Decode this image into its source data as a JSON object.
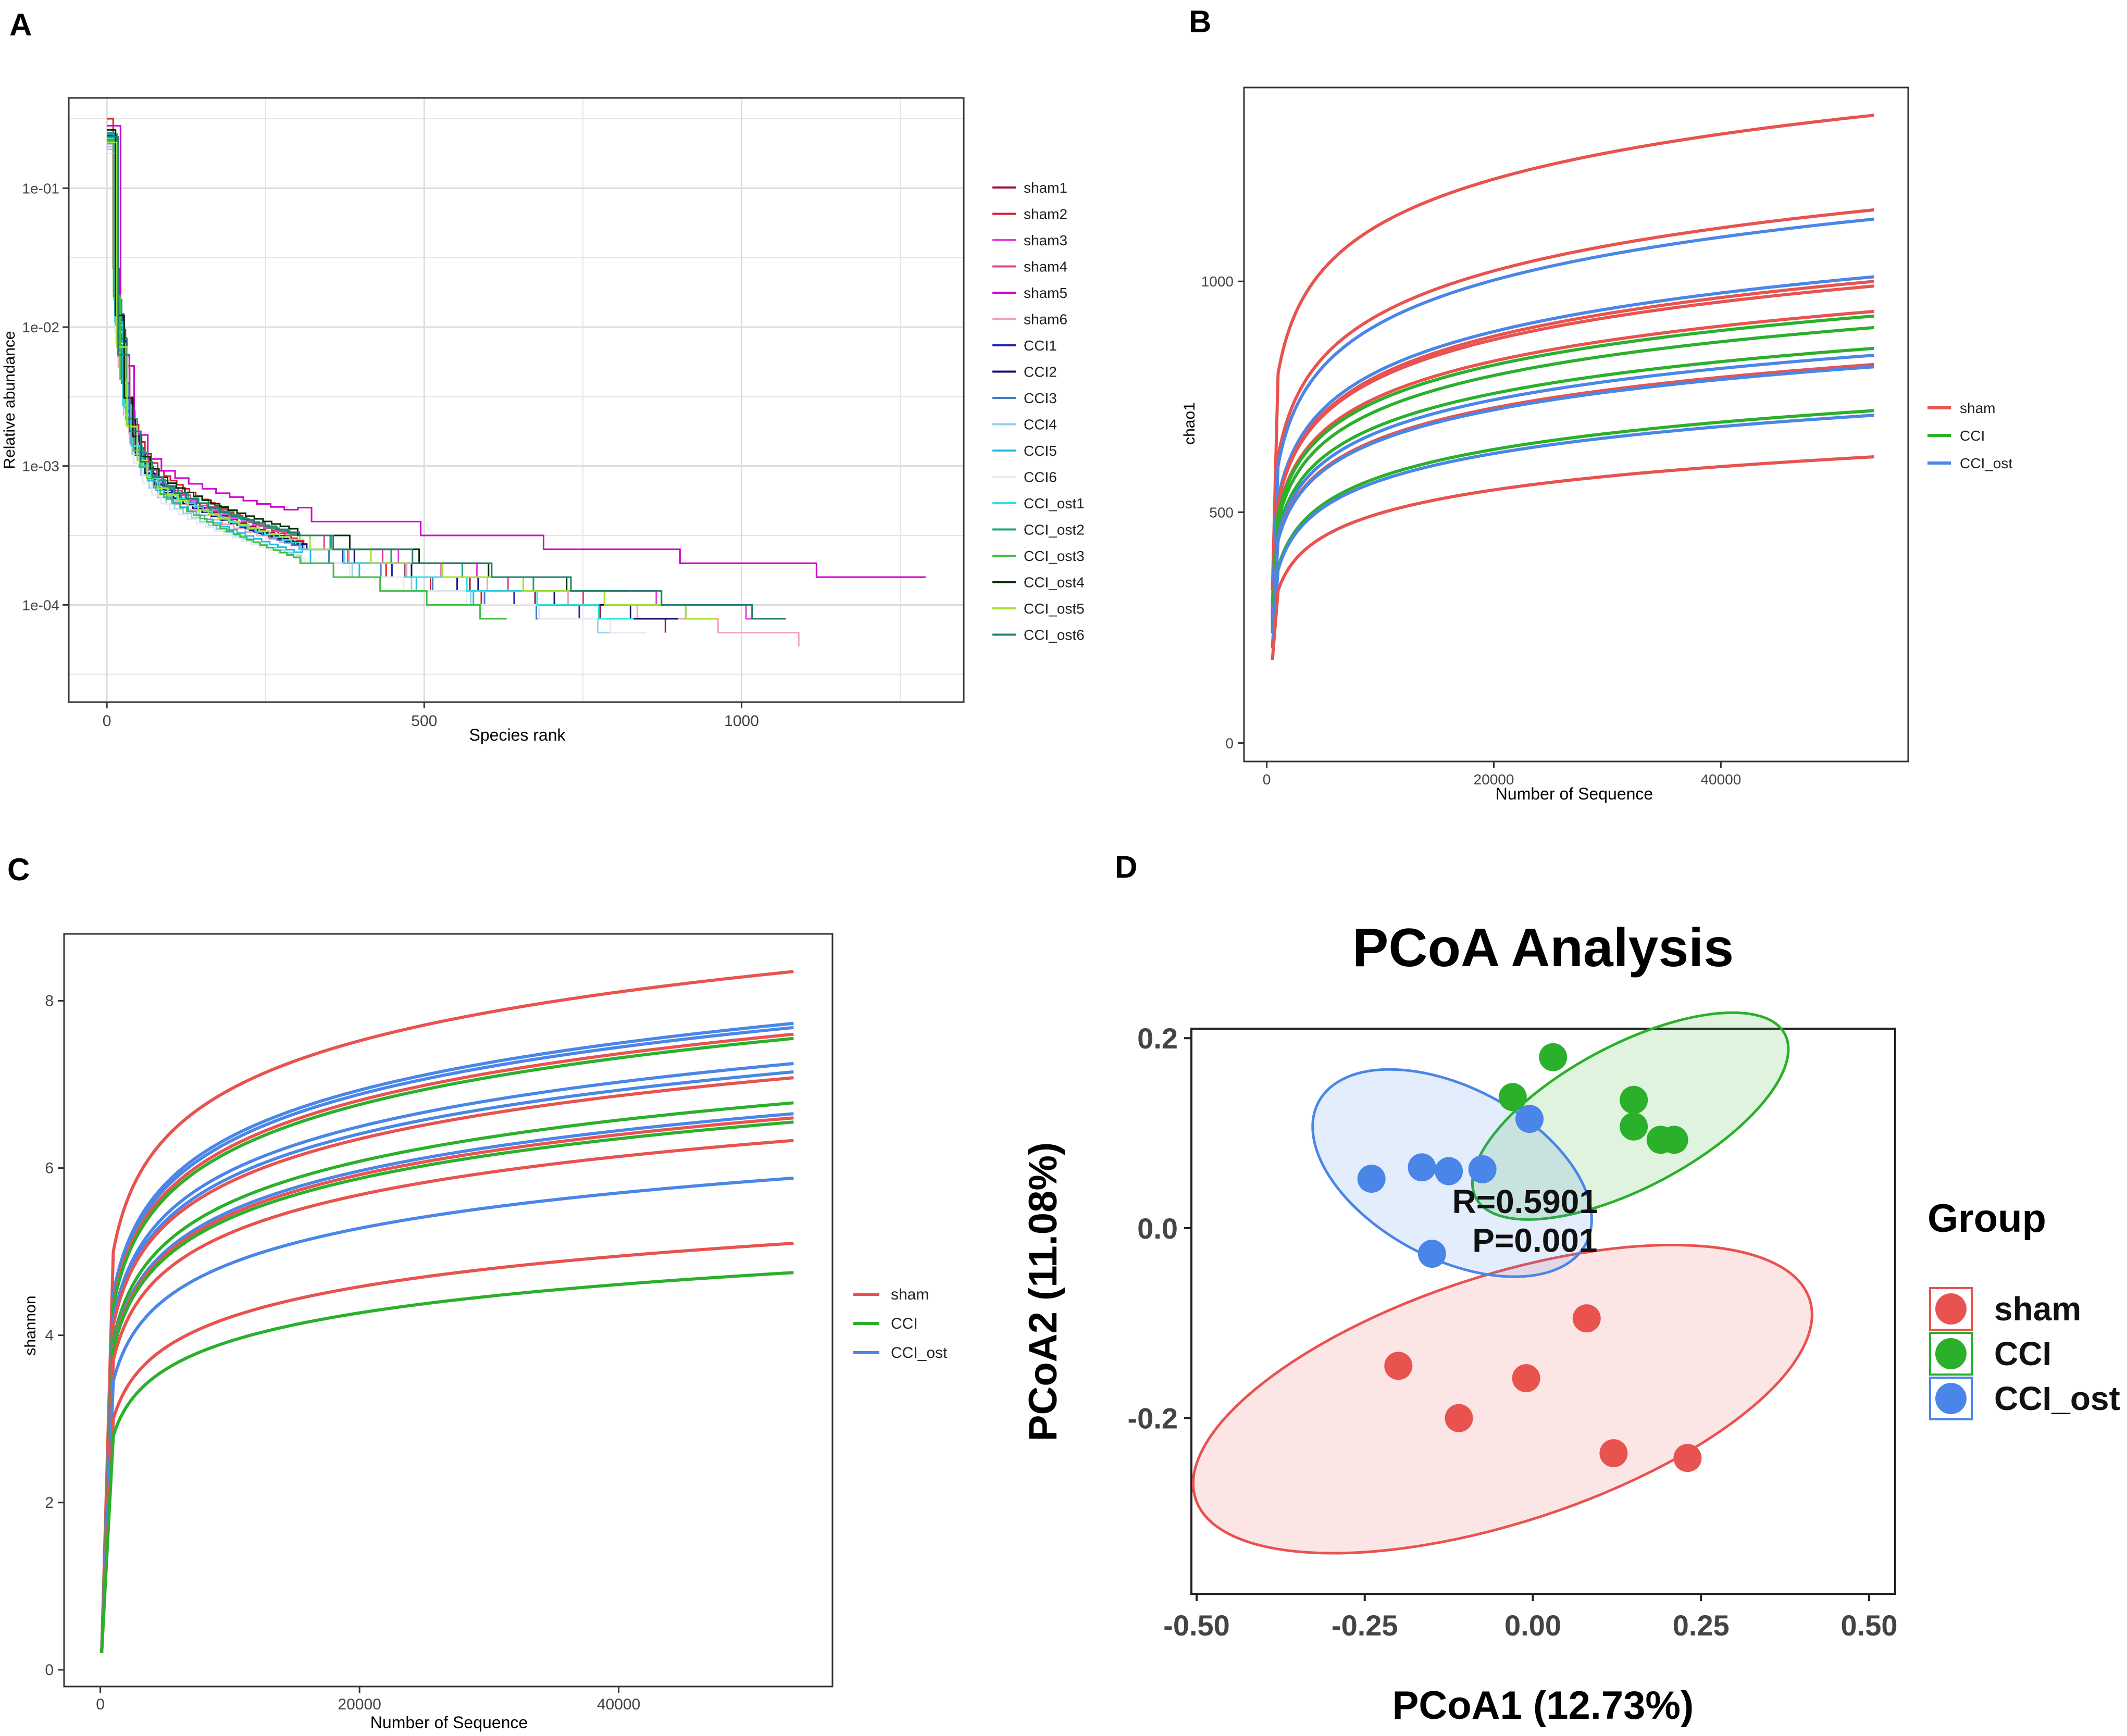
{
  "panel_letters": [
    "A",
    "B",
    "C",
    "D"
  ],
  "colors": {
    "sham": "#e8534f",
    "CCI": "#2ab02a",
    "CCI_ost": "#4a86e8",
    "grid": "#e4e4e4"
  },
  "chart_data": [
    {
      "panel": "A",
      "type": "line",
      "title": "",
      "xlabel": "Species rank",
      "ylabel": "Relative abundance",
      "xlim": [
        -60,
        1350
      ],
      "ylim_log10": [
        -4.7,
        -0.35
      ],
      "x_ticks": [
        0,
        500,
        1000
      ],
      "x_tick_labels": [
        "0",
        "500",
        "1000"
      ],
      "y_ticks_log10": [
        -1,
        -2,
        -3,
        -4
      ],
      "y_tick_labels": [
        "1e-01",
        "1e-02",
        "1e-03",
        "1e-04"
      ],
      "grid": true,
      "legend_position": "right",
      "series": [
        {
          "name": "sham1",
          "color": "#a0103c",
          "n": 880,
          "p1000": -3.95,
          "y0": -0.62
        },
        {
          "name": "sham2",
          "color": "#d42030",
          "n": 600,
          "p1000": -4.3,
          "y0": -0.5
        },
        {
          "name": "sham3",
          "color": "#e040e0",
          "n": 1060,
          "p1000": -3.7,
          "y0": -0.65
        },
        {
          "name": "sham4",
          "color": "#e84090",
          "n": 790,
          "p1000": -3.88,
          "y0": -0.6
        },
        {
          "name": "sham5",
          "color": "#d000d0",
          "n": 1290,
          "p1000": -3.45,
          "y0": -0.55
        },
        {
          "name": "sham6",
          "color": "#f4a0b8",
          "n": 1090,
          "p1000": -3.78,
          "y0": -0.7
        },
        {
          "name": "CCI1",
          "color": "#2020b0",
          "n": 770,
          "p1000": -3.98,
          "y0": -0.63
        },
        {
          "name": "CCI2",
          "color": "#101070",
          "n": 900,
          "p1000": -3.85,
          "y0": -0.66
        },
        {
          "name": "CCI3",
          "color": "#4080c8",
          "n": 700,
          "p1000": -4.12,
          "y0": -0.6
        },
        {
          "name": "CCI4",
          "color": "#90d0f0",
          "n": 800,
          "p1000": -3.95,
          "y0": -0.72
        },
        {
          "name": "CCI5",
          "color": "#20c0e8",
          "n": 770,
          "p1000": -4.0,
          "y0": -0.68
        },
        {
          "name": "CCI6",
          "color": "#e8e8f0",
          "n": 850,
          "p1000": -3.9,
          "y0": -0.75
        },
        {
          "name": "CCI_ost1",
          "color": "#30e0e0",
          "n": 830,
          "p1000": -3.92,
          "y0": -0.64
        },
        {
          "name": "CCI_ost2",
          "color": "#20a080",
          "n": 960,
          "p1000": -3.82,
          "y0": -0.61
        },
        {
          "name": "CCI_ost3",
          "color": "#40c040",
          "n": 630,
          "p1000": -4.2,
          "y0": -0.66
        },
        {
          "name": "CCI_ost4",
          "color": "#003000",
          "n": 820,
          "p1000": -3.8,
          "y0": -0.58
        },
        {
          "name": "CCI_ost5",
          "color": "#a8e030",
          "n": 960,
          "p1000": -3.75,
          "y0": -0.67
        },
        {
          "name": "CCI_ost6",
          "color": "#208070",
          "n": 1070,
          "p1000": -3.72,
          "y0": -0.63
        }
      ],
      "floor_log10": -4.48
    },
    {
      "panel": "B",
      "type": "line",
      "title": "",
      "xlabel": "Number of Sequence",
      "ylabel": "chao1",
      "xlim": [
        -2000,
        56500
      ],
      "ylim": [
        -40,
        1420
      ],
      "x_ticks": [
        0,
        20000,
        40000
      ],
      "x_tick_labels": [
        "0",
        "20000",
        "40000"
      ],
      "y_ticks": [
        0,
        500,
        1000
      ],
      "y_tick_labels": [
        "0",
        "500",
        "1000"
      ],
      "grid": false,
      "legend_position": "right",
      "legend": [
        "sham",
        "CCI",
        "CCI_ost"
      ],
      "x_end": 53500,
      "series": [
        {
          "group": "sham",
          "values_at": [
            [
              500,
              330
            ],
            [
              1000,
              800
            ],
            [
              53500,
              1360
            ]
          ]
        },
        {
          "group": "sham",
          "values_at": [
            [
              500,
              300
            ],
            [
              1000,
              620
            ],
            [
              53500,
              1155
            ]
          ]
        },
        {
          "group": "CCI_ost",
          "values_at": [
            [
              500,
              300
            ],
            [
              1000,
              600
            ],
            [
              53500,
              1135
            ]
          ]
        },
        {
          "group": "CCI_ost",
          "values_at": [
            [
              500,
              280
            ],
            [
              1000,
              530
            ],
            [
              53500,
              1010
            ]
          ]
        },
        {
          "group": "sham",
          "values_at": [
            [
              500,
              280
            ],
            [
              1000,
              520
            ],
            [
              53500,
              1000
            ]
          ]
        },
        {
          "group": "sham",
          "values_at": [
            [
              500,
              280
            ],
            [
              1000,
              520
            ],
            [
              53500,
              990
            ]
          ]
        },
        {
          "group": "sham",
          "values_at": [
            [
              500,
              270
            ],
            [
              1000,
              500
            ],
            [
              53500,
              935
            ]
          ]
        },
        {
          "group": "CCI",
          "values_at": [
            [
              500,
              265
            ],
            [
              1000,
              495
            ],
            [
              53500,
              925
            ]
          ]
        },
        {
          "group": "CCI",
          "values_at": [
            [
              500,
              260
            ],
            [
              1000,
              480
            ],
            [
              53500,
              900
            ]
          ]
        },
        {
          "group": "CCI",
          "values_at": [
            [
              500,
              250
            ],
            [
              1000,
              460
            ],
            [
              53500,
              855
            ]
          ]
        },
        {
          "group": "CCI_ost",
          "values_at": [
            [
              500,
              245
            ],
            [
              1000,
              450
            ],
            [
              53500,
              840
            ]
          ]
        },
        {
          "group": "sham",
          "values_at": [
            [
              500,
              240
            ],
            [
              1000,
              440
            ],
            [
              53500,
              820
            ]
          ]
        },
        {
          "group": "CCI_ost",
          "values_at": [
            [
              500,
              238
            ],
            [
              1000,
              438
            ],
            [
              53500,
              815
            ]
          ]
        },
        {
          "group": "CCI",
          "values_at": [
            [
              500,
              210
            ],
            [
              1000,
              380
            ],
            [
              53500,
              720
            ]
          ]
        },
        {
          "group": "CCI_ost",
          "values_at": [
            [
              500,
              205
            ],
            [
              1000,
              375
            ],
            [
              53500,
              710
            ]
          ]
        },
        {
          "group": "sham",
          "values_at": [
            [
              500,
              180
            ],
            [
              1000,
              330
            ],
            [
              53500,
              620
            ]
          ]
        }
      ]
    },
    {
      "panel": "C",
      "type": "line",
      "title": "",
      "xlabel": "Number of Sequence",
      "ylabel": "shannon",
      "xlim": [
        -2800,
        56500
      ],
      "ylim": [
        -0.2,
        8.8
      ],
      "x_ticks": [
        0,
        20000,
        40000
      ],
      "x_tick_labels": [
        "0",
        "20000",
        "40000"
      ],
      "y_ticks": [
        0,
        2,
        4,
        6,
        8
      ],
      "y_tick_labels": [
        "0",
        "2",
        "4",
        "6",
        "8"
      ],
      "grid": false,
      "legend_position": "right",
      "legend": [
        "sham",
        "CCI",
        "CCI_ost"
      ],
      "x_end": 53500,
      "series": [
        {
          "group": "sham",
          "values_at": [
            [
              100,
              0.2
            ],
            [
              1000,
              5.0
            ],
            [
              53500,
              8.35
            ]
          ]
        },
        {
          "group": "CCI_ost",
          "values_at": [
            [
              100,
              0.2
            ],
            [
              1000,
              4.5
            ],
            [
              53500,
              7.73
            ]
          ]
        },
        {
          "group": "CCI_ost",
          "values_at": [
            [
              100,
              0.2
            ],
            [
              1000,
              4.45
            ],
            [
              53500,
              7.68
            ]
          ]
        },
        {
          "group": "sham",
          "values_at": [
            [
              100,
              0.2
            ],
            [
              1000,
              4.4
            ],
            [
              53500,
              7.6
            ]
          ]
        },
        {
          "group": "CCI",
          "values_at": [
            [
              100,
              0.2
            ],
            [
              1000,
              4.35
            ],
            [
              53500,
              7.55
            ]
          ]
        },
        {
          "group": "CCI_ost",
          "values_at": [
            [
              100,
              0.2
            ],
            [
              1000,
              4.2
            ],
            [
              53500,
              7.25
            ]
          ]
        },
        {
          "group": "CCI_ost",
          "values_at": [
            [
              100,
              0.2
            ],
            [
              1000,
              4.15
            ],
            [
              53500,
              7.15
            ]
          ]
        },
        {
          "group": "sham",
          "values_at": [
            [
              100,
              0.2
            ],
            [
              1000,
              4.12
            ],
            [
              53500,
              7.08
            ]
          ]
        },
        {
          "group": "CCI",
          "values_at": [
            [
              100,
              0.2
            ],
            [
              1000,
              3.95
            ],
            [
              53500,
              6.78
            ]
          ]
        },
        {
          "group": "CCI_ost",
          "values_at": [
            [
              100,
              0.2
            ],
            [
              1000,
              3.88
            ],
            [
              53500,
              6.65
            ]
          ]
        },
        {
          "group": "sham",
          "values_at": [
            [
              100,
              0.2
            ],
            [
              1000,
              3.85
            ],
            [
              53500,
              6.6
            ]
          ]
        },
        {
          "group": "CCI",
          "values_at": [
            [
              100,
              0.2
            ],
            [
              1000,
              3.82
            ],
            [
              53500,
              6.55
            ]
          ]
        },
        {
          "group": "sham",
          "values_at": [
            [
              100,
              0.2
            ],
            [
              1000,
              3.7
            ],
            [
              53500,
              6.33
            ]
          ]
        },
        {
          "group": "CCI_ost",
          "values_at": [
            [
              100,
              0.2
            ],
            [
              1000,
              3.45
            ],
            [
              53500,
              5.88
            ]
          ]
        },
        {
          "group": "sham",
          "values_at": [
            [
              100,
              0.2
            ],
            [
              1000,
              3.0
            ],
            [
              53500,
              5.1
            ]
          ]
        },
        {
          "group": "CCI",
          "values_at": [
            [
              100,
              0.2
            ],
            [
              1000,
              2.8
            ],
            [
              53500,
              4.75
            ]
          ]
        }
      ]
    },
    {
      "panel": "D",
      "type": "scatter",
      "title": "PCoA Analysis",
      "xlabel": "PCoA1 (12.73%)",
      "ylabel": "PCoA2 (11.08%)",
      "xlim": [
        -0.5,
        0.5
      ],
      "ylim": [
        -0.385,
        0.21
      ],
      "x_ticks": [
        -0.5,
        -0.25,
        0,
        0.25,
        0.5
      ],
      "x_tick_labels": [
        "-0.50",
        "-0.25",
        "0.00",
        "0.25",
        "0.50"
      ],
      "y_ticks": [
        0.2,
        0.0,
        -0.2
      ],
      "y_tick_labels": [
        "0.2",
        "0.0",
        "-0.2"
      ],
      "grid": false,
      "legend_title": "Group",
      "legend_position": "right",
      "legend": [
        "sham",
        "CCI",
        "CCI_ost"
      ],
      "annotations": [
        "R=0.5901",
        "P=0.001"
      ],
      "annotation_anchor": [
        [
          -0.12,
          0.016
        ],
        [
          -0.09,
          -0.025
        ]
      ],
      "series": [
        {
          "name": "sham",
          "points": [
            [
              -0.2,
              -0.145
            ],
            [
              -0.11,
              -0.2
            ],
            [
              -0.01,
              -0.158
            ],
            [
              0.08,
              -0.095
            ],
            [
              0.12,
              -0.237
            ],
            [
              0.23,
              -0.242
            ]
          ],
          "ellipse": {
            "cx": -0.045,
            "cy": -0.18,
            "rx": 0.48,
            "ry": 0.13,
            "angle_deg": -18
          }
        },
        {
          "name": "CCI",
          "points": [
            [
              0.03,
              0.18
            ],
            [
              -0.03,
              0.138
            ],
            [
              0.15,
              0.135
            ],
            [
              0.15,
              0.107
            ],
            [
              0.19,
              0.093
            ],
            [
              0.21,
              0.093
            ]
          ],
          "ellipse": {
            "cx": 0.145,
            "cy": 0.118,
            "rx": 0.26,
            "ry": 0.075,
            "angle_deg": -28
          }
        },
        {
          "name": "CCI_ost",
          "points": [
            [
              -0.24,
              0.052
            ],
            [
              -0.165,
              0.064
            ],
            [
              -0.125,
              0.06
            ],
            [
              -0.075,
              0.062
            ],
            [
              -0.005,
              0.115
            ],
            [
              -0.15,
              -0.027
            ]
          ],
          "ellipse": {
            "cx": -0.12,
            "cy": 0.058,
            "rx": 0.225,
            "ry": 0.09,
            "angle_deg": 28
          }
        }
      ]
    }
  ]
}
